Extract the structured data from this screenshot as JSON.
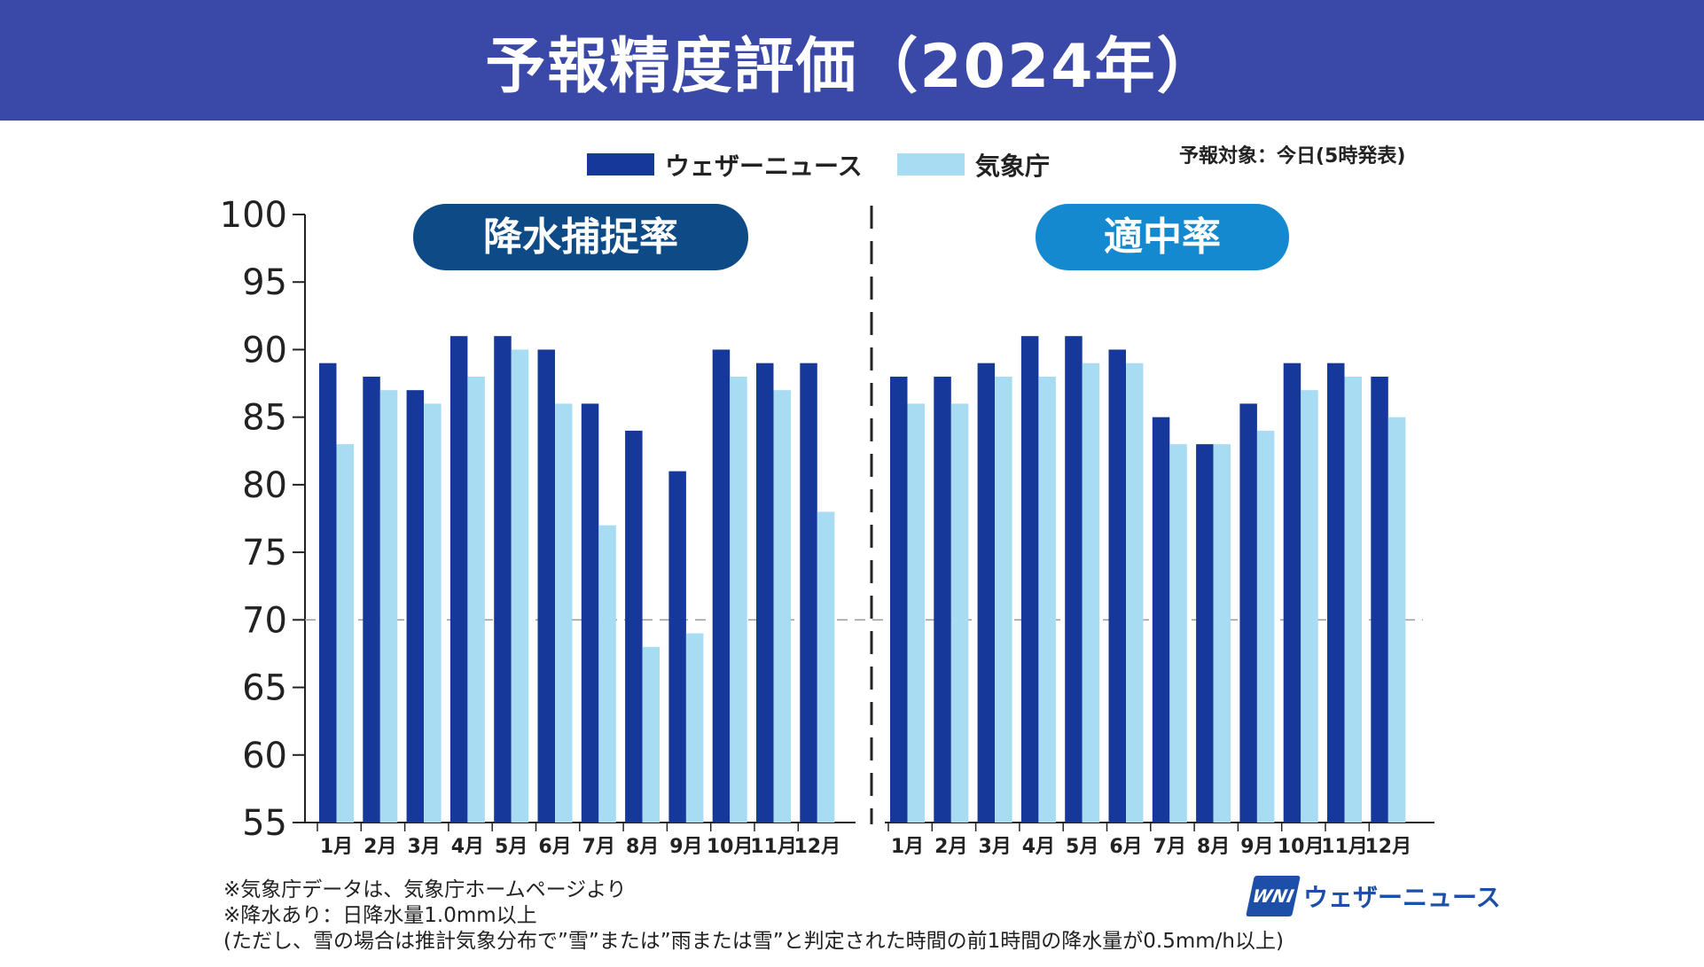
{
  "header": {
    "title": "予報精度評価（2024年）"
  },
  "legend": {
    "items": [
      "ウェザーニュース",
      "気象庁"
    ]
  },
  "target_note": "予報対象：今日(5時発表)",
  "panels": [
    {
      "label": "降水捕捉率",
      "color": "#0d4a86"
    },
    {
      "label": "適中率",
      "color": "#1589cf"
    }
  ],
  "colors": {
    "wni": "#16389a",
    "jma": "#a8dcf2",
    "header": "#3a48a8"
  },
  "chart_data": {
    "type": "bar",
    "ylim": [
      55,
      100
    ],
    "yticks": [
      100,
      95,
      90,
      85,
      80,
      75,
      70,
      65,
      60,
      55
    ],
    "categories": [
      "1月",
      "2月",
      "3月",
      "4月",
      "5月",
      "6月",
      "7月",
      "8月",
      "9月",
      "10月",
      "11月",
      "12月"
    ],
    "panels": [
      {
        "title": "降水捕捉率",
        "series": [
          {
            "name": "ウェザーニュース",
            "values": [
              89,
              88,
              87,
              91,
              91,
              90,
              86,
              84,
              81,
              90,
              89,
              89
            ]
          },
          {
            "name": "気象庁",
            "values": [
              83,
              87,
              86,
              88,
              90,
              86,
              77,
              68,
              69,
              88,
              87,
              78
            ]
          }
        ]
      },
      {
        "title": "適中率",
        "series": [
          {
            "name": "ウェザーニュース",
            "values": [
              88,
              88,
              89,
              91,
              91,
              90,
              85,
              83,
              86,
              89,
              89,
              88
            ]
          },
          {
            "name": "気象庁",
            "values": [
              86,
              86,
              88,
              88,
              89,
              89,
              83,
              83,
              84,
              87,
              88,
              85
            ]
          }
        ]
      }
    ]
  },
  "footnotes": [
    "※気象庁データは、気象庁ホームページより",
    "※降水あり：日降水量1.0mm以上",
    "(ただし、雪の場合は推計気象分布で”雪”または”雨または雪”と判定された時間の前1時間の降水量が0.5mm/h以上)"
  ],
  "brand": {
    "logo": "WNI",
    "name": "ウェザーニュース"
  }
}
